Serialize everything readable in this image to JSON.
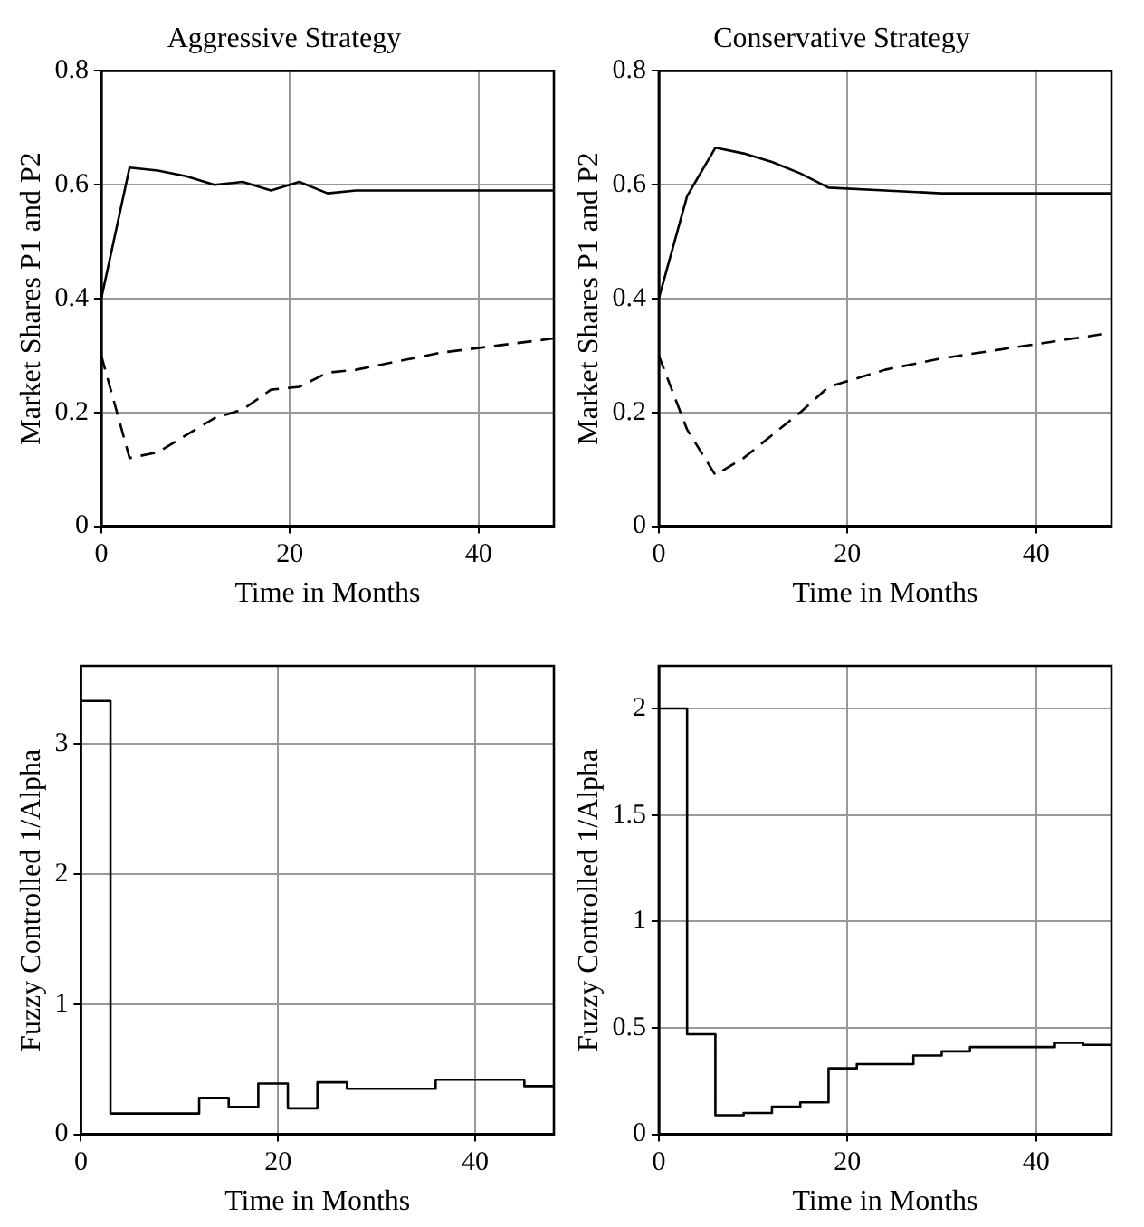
{
  "chart_data": [
    {
      "type": "line",
      "title": "Aggressive Strategy",
      "xlabel": "Time in Months",
      "ylabel": "Market Shares P1 and P2",
      "xlim": [
        0,
        48
      ],
      "xticks": [
        0,
        20,
        40
      ],
      "ylim": [
        0,
        0.8
      ],
      "yticks": [
        0,
        0.2,
        0.4,
        0.6,
        0.8
      ],
      "grid": true,
      "marker": "none",
      "series": [
        {
          "color": "#000000",
          "line_style": "solid",
          "x": [
            0,
            3,
            6,
            9,
            12,
            15,
            18,
            21,
            24,
            27,
            36,
            48
          ],
          "values": [
            0.4,
            0.63,
            0.625,
            0.615,
            0.6,
            0.605,
            0.59,
            0.605,
            0.585,
            0.59,
            0.59,
            0.59
          ]
        },
        {
          "color": "#000000",
          "line_style": "dashed",
          "x": [
            0,
            3,
            6,
            12,
            15,
            18,
            21,
            24,
            27,
            36,
            48
          ],
          "values": [
            0.3,
            0.12,
            0.13,
            0.19,
            0.205,
            0.24,
            0.245,
            0.27,
            0.275,
            0.305,
            0.33
          ]
        }
      ]
    },
    {
      "type": "line",
      "title": "Conservative Strategy",
      "xlabel": "Time in Months",
      "ylabel": "Market Shares P1 and P2",
      "xlim": [
        0,
        48
      ],
      "xticks": [
        0,
        20,
        40
      ],
      "ylim": [
        0,
        0.8
      ],
      "yticks": [
        0,
        0.2,
        0.4,
        0.6,
        0.8
      ],
      "grid": true,
      "marker": "none",
      "series": [
        {
          "color": "#000000",
          "line_style": "solid",
          "x": [
            0,
            3,
            6,
            9,
            12,
            15,
            18,
            24,
            30,
            48
          ],
          "values": [
            0.4,
            0.58,
            0.665,
            0.655,
            0.64,
            0.62,
            0.595,
            0.59,
            0.585,
            0.585
          ]
        },
        {
          "color": "#000000",
          "line_style": "dashed",
          "x": [
            0,
            3,
            6,
            9,
            12,
            15,
            18,
            24,
            30,
            36,
            42,
            48
          ],
          "values": [
            0.3,
            0.17,
            0.09,
            0.12,
            0.16,
            0.2,
            0.245,
            0.275,
            0.295,
            0.31,
            0.325,
            0.34
          ]
        }
      ]
    },
    {
      "type": "step",
      "xlabel": "Time in Months",
      "ylabel": "Fuzzy Controlled 1/Alpha",
      "xlim": [
        0,
        48
      ],
      "xticks": [
        0,
        20,
        40
      ],
      "ylim": [
        0,
        3.6
      ],
      "yticks": [
        0,
        1,
        2,
        3
      ],
      "grid": true,
      "marker": "none",
      "series": [
        {
          "color": "#000000",
          "x": [
            0,
            3,
            12,
            15,
            18,
            21,
            24,
            27,
            36,
            45,
            48
          ],
          "values": [
            3.33,
            0.16,
            0.28,
            0.21,
            0.39,
            0.2,
            0.4,
            0.35,
            0.42,
            0.37,
            0.37
          ]
        }
      ]
    },
    {
      "type": "step",
      "xlabel": "Time in Months",
      "ylabel": "Fuzzy Controlled 1/Alpha",
      "xlim": [
        0,
        48
      ],
      "xticks": [
        0,
        20,
        40
      ],
      "ylim": [
        0,
        2.2
      ],
      "yticks": [
        0,
        0.5,
        1,
        1.5,
        2
      ],
      "grid": true,
      "marker": "none",
      "series": [
        {
          "color": "#000000",
          "x": [
            0,
            3,
            6,
            9,
            12,
            15,
            18,
            21,
            27,
            30,
            33,
            42,
            45,
            48
          ],
          "values": [
            2,
            0.47,
            0.09,
            0.1,
            0.13,
            0.15,
            0.31,
            0.33,
            0.37,
            0.39,
            0.41,
            0.43,
            0.42,
            0.42
          ]
        }
      ]
    }
  ]
}
